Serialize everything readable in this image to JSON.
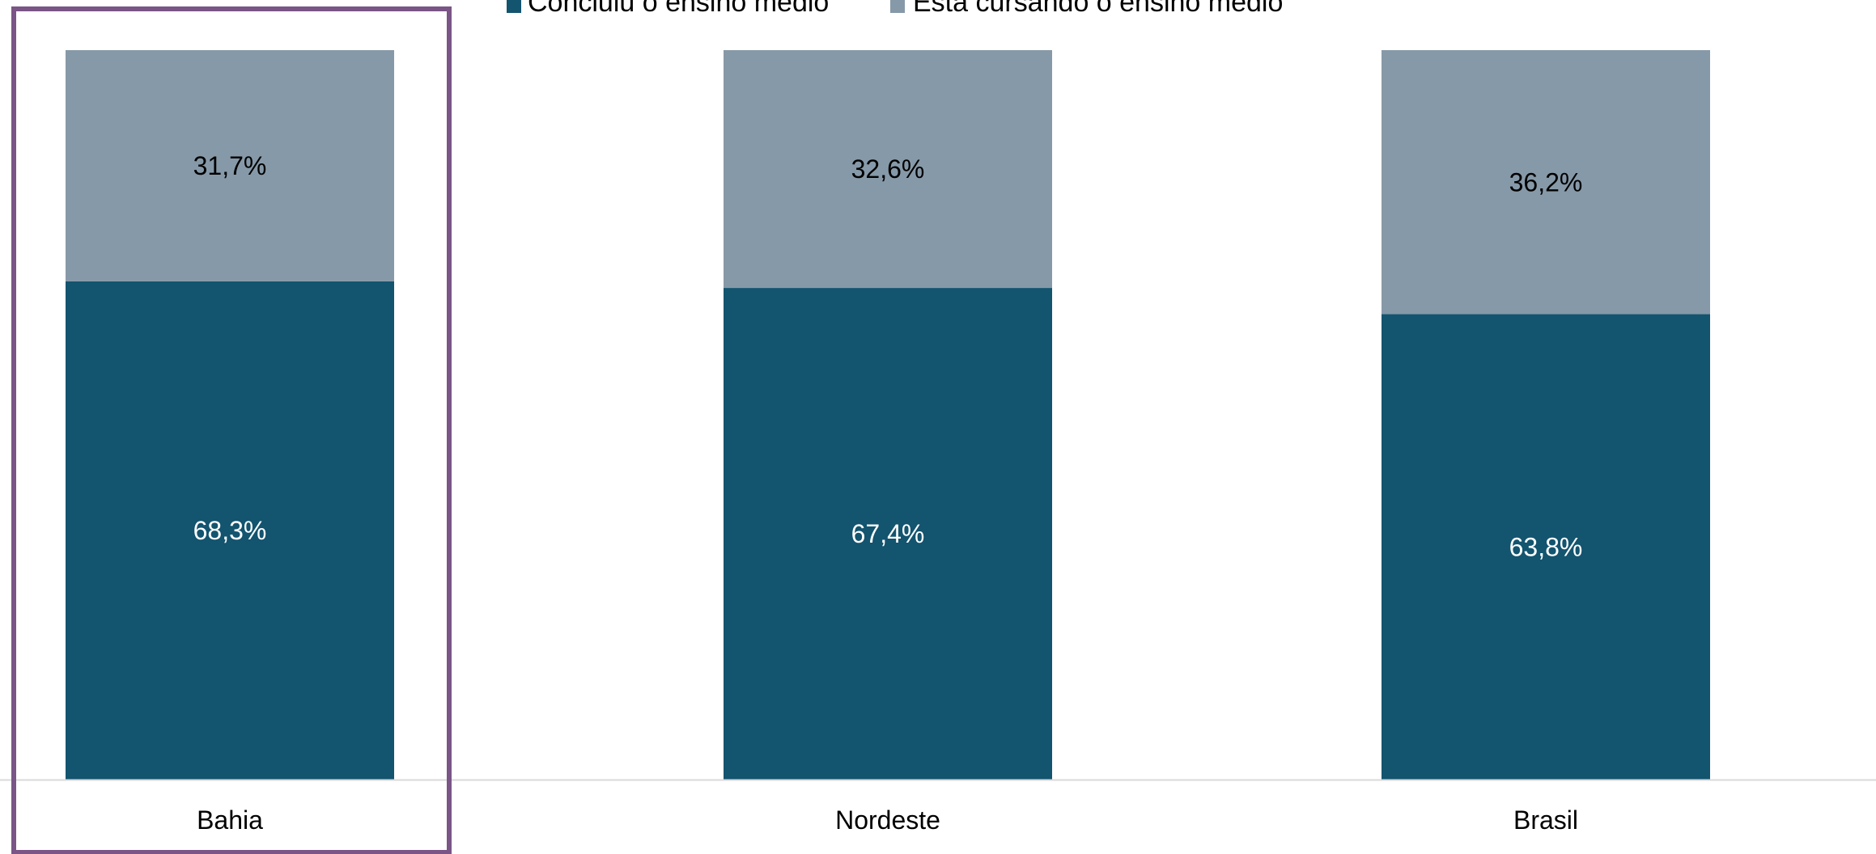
{
  "chart_data": {
    "type": "bar",
    "stacked": true,
    "percent_stacked": true,
    "categories": [
      "Bahia",
      "Nordeste",
      "Brasil"
    ],
    "series": [
      {
        "name": "Concluiu o ensino médio",
        "values": [
          68.3,
          67.4,
          63.8
        ],
        "labels": [
          "68,3%",
          "67,4%",
          "63,8%"
        ],
        "color": "#13546f",
        "label_color": "#ffffff"
      },
      {
        "name": "Está cursando o ensino médio",
        "values": [
          31.7,
          32.6,
          36.2
        ],
        "labels": [
          "31,7%",
          "32,6%",
          "36,2%"
        ],
        "color": "#8699a8",
        "label_color": "#000000"
      }
    ],
    "ylim": [
      0,
      100
    ],
    "legend_position": "top",
    "highlight": {
      "category": "Bahia",
      "color": "#7a5586"
    },
    "axis_line_color": "#d9d9d9",
    "grid": false
  }
}
